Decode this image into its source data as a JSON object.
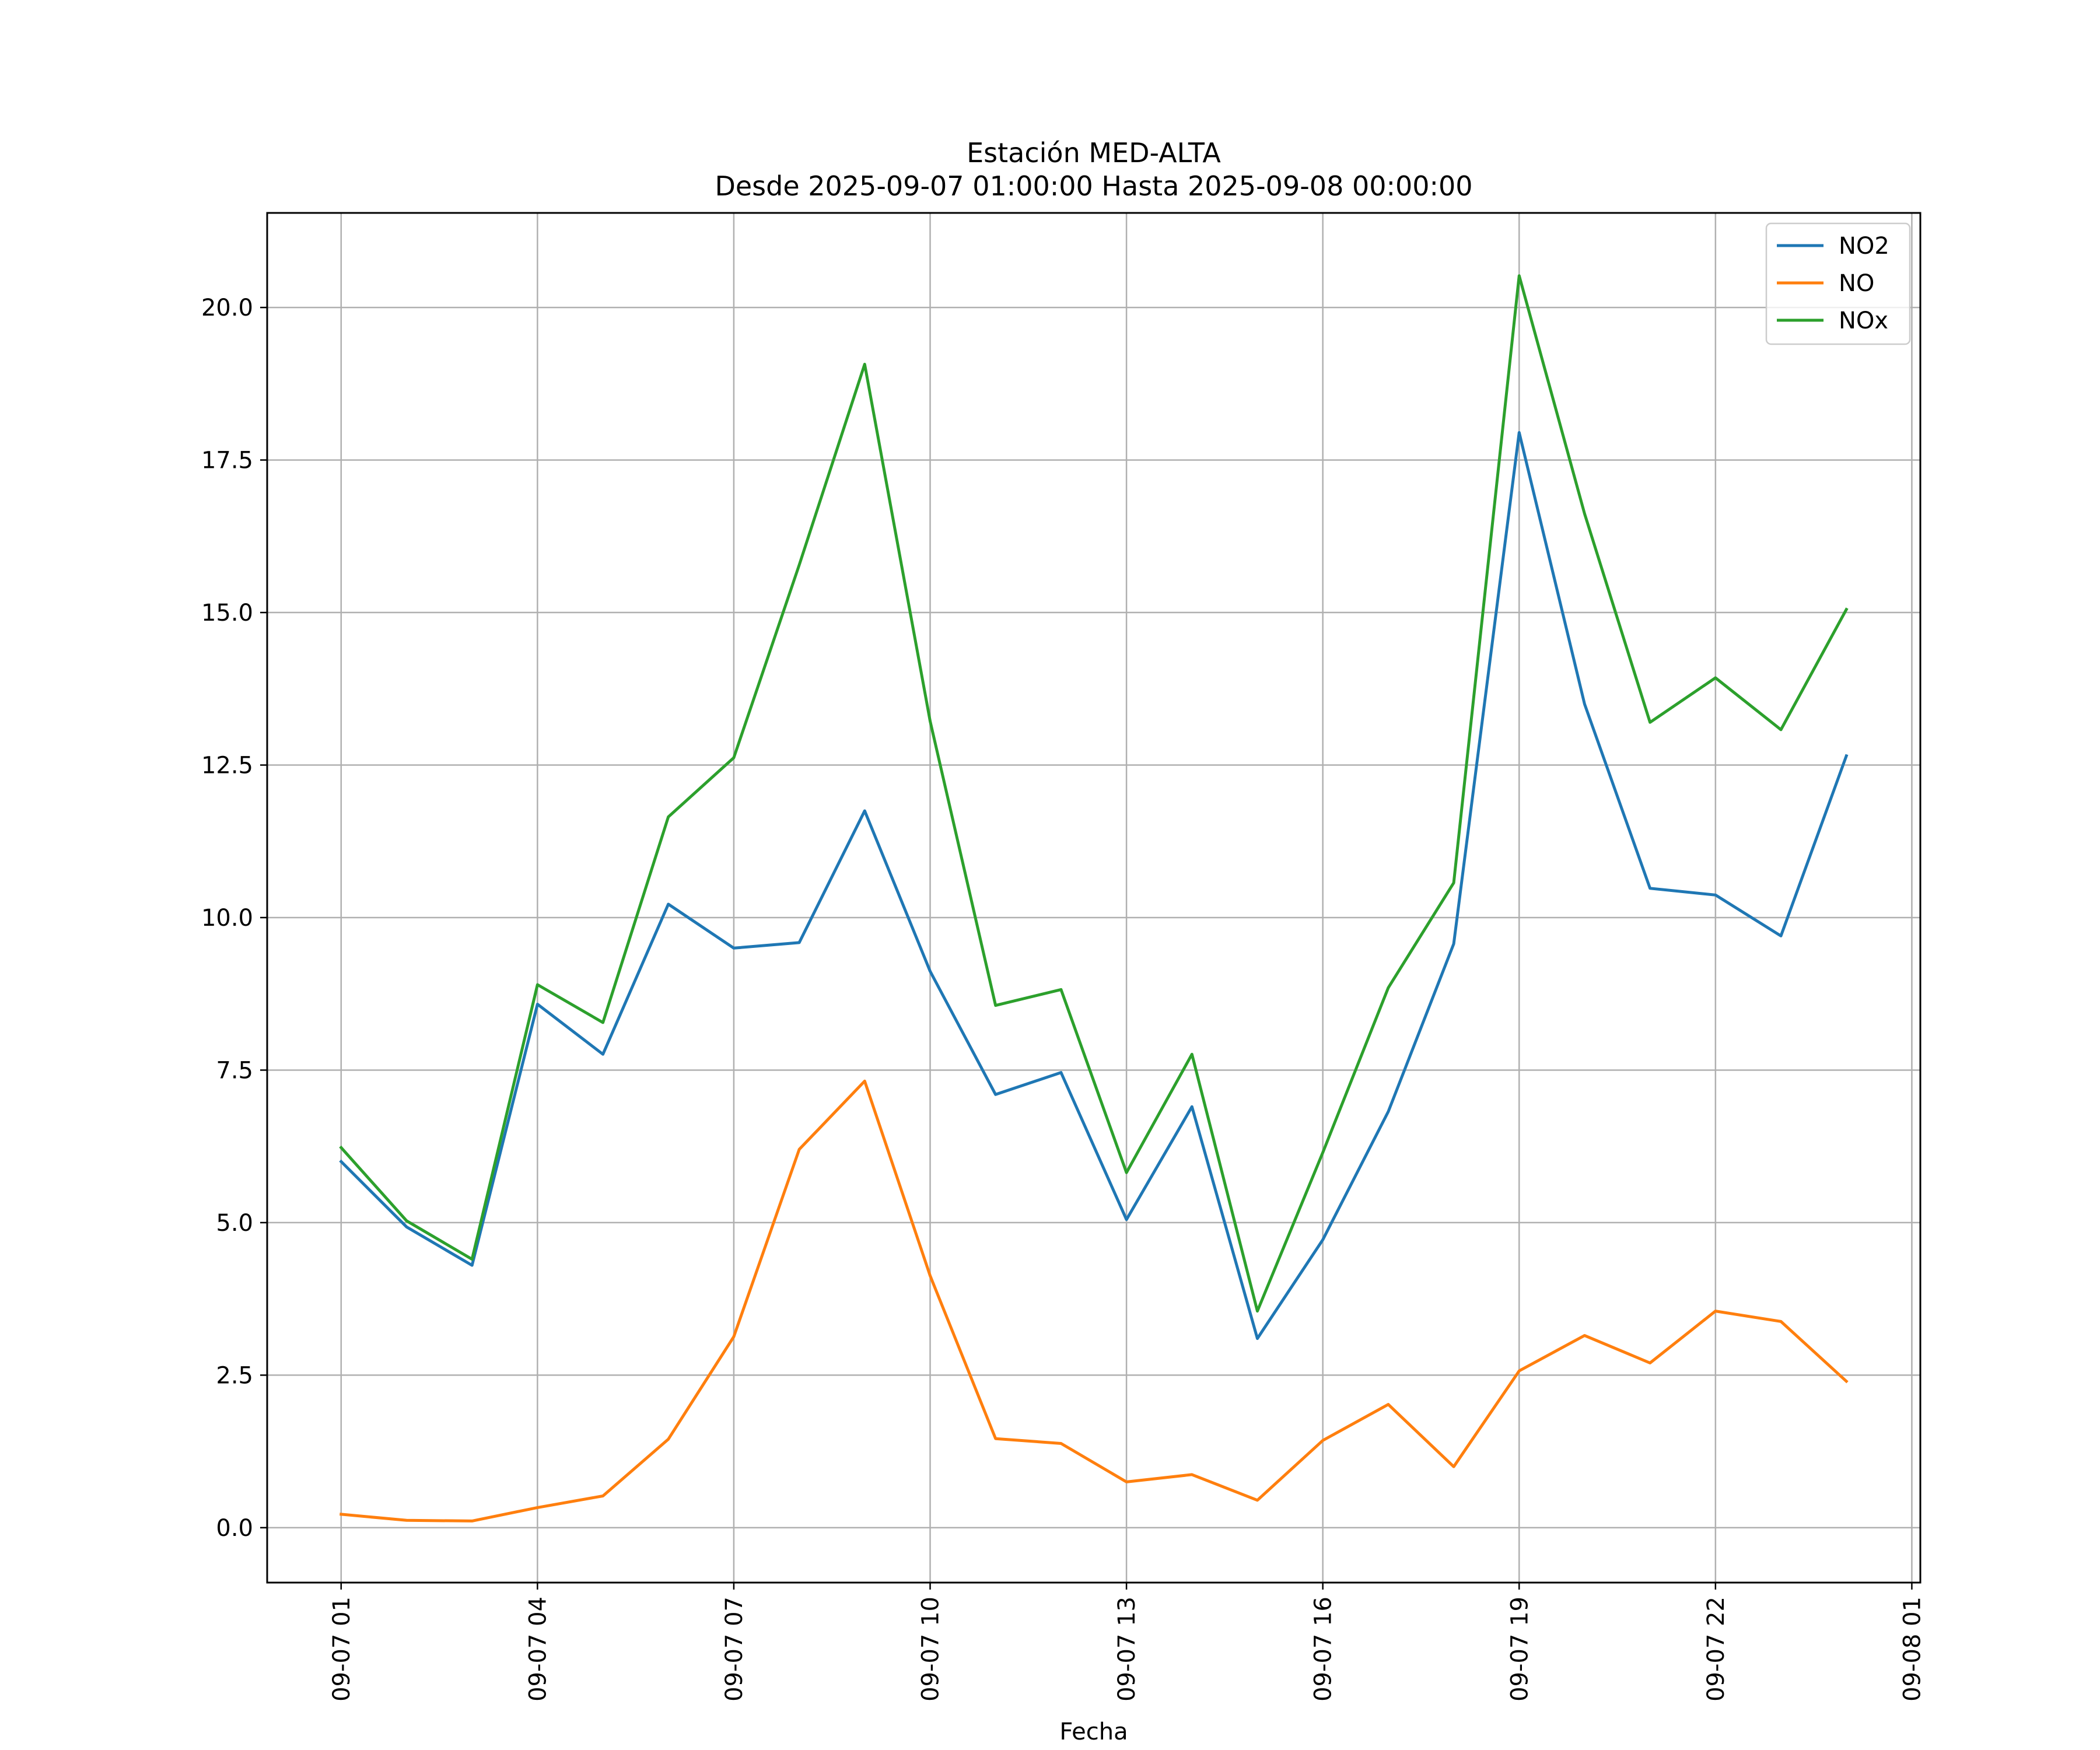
{
  "chart_data": {
    "type": "line",
    "title": "Estación MED-ALTA",
    "subtitle": "Desde 2025-09-07 01:00:00 Hasta 2025-09-08 00:00:00",
    "xlabel": "Fecha",
    "ylabel": "",
    "grid": true,
    "legend_position": "top-right",
    "x": [
      "09-07 01",
      "09-07 02",
      "09-07 03",
      "09-07 04",
      "09-07 05",
      "09-07 06",
      "09-07 07",
      "09-07 08",
      "09-07 09",
      "09-07 10",
      "09-07 11",
      "09-07 12",
      "09-07 13",
      "09-07 14",
      "09-07 15",
      "09-07 16",
      "09-07 17",
      "09-07 18",
      "09-07 19",
      "09-07 20",
      "09-07 21",
      "09-07 22",
      "09-07 23",
      "09-08 00"
    ],
    "x_hours": [
      1,
      2,
      3,
      4,
      5,
      6,
      7,
      8,
      9,
      10,
      11,
      12,
      13,
      14,
      15,
      16,
      17,
      18,
      19,
      20,
      21,
      22,
      23,
      24
    ],
    "xlim": [
      -0.13,
      25.13
    ],
    "xticks": [
      {
        "hour": 1,
        "label": "09-07 01"
      },
      {
        "hour": 4,
        "label": "09-07 04"
      },
      {
        "hour": 7,
        "label": "09-07 07"
      },
      {
        "hour": 10,
        "label": "09-07 10"
      },
      {
        "hour": 13,
        "label": "09-07 13"
      },
      {
        "hour": 16,
        "label": "09-07 16"
      },
      {
        "hour": 19,
        "label": "09-07 19"
      },
      {
        "hour": 22,
        "label": "09-07 22"
      },
      {
        "hour": 25,
        "label": "09-08 01"
      }
    ],
    "ylim": [
      -0.9,
      21.55
    ],
    "yticks": [
      {
        "value": 0,
        "label": "0.0"
      },
      {
        "value": 2.5,
        "label": "2.5"
      },
      {
        "value": 5,
        "label": "5.0"
      },
      {
        "value": 7.5,
        "label": "7.5"
      },
      {
        "value": 10,
        "label": "10.0"
      },
      {
        "value": 12.5,
        "label": "12.5"
      },
      {
        "value": 15,
        "label": "15.0"
      },
      {
        "value": 17.5,
        "label": "17.5"
      },
      {
        "value": 20,
        "label": "20.0"
      }
    ],
    "series": [
      {
        "name": "NO2",
        "color": "#1f77b4",
        "values": [
          6.0,
          4.93,
          4.3,
          8.58,
          7.76,
          10.22,
          9.5,
          9.59,
          11.75,
          9.12,
          7.1,
          7.46,
          5.05,
          6.9,
          3.1,
          4.72,
          6.82,
          9.57,
          17.95,
          13.5,
          10.48,
          10.37,
          9.7,
          12.65
        ]
      },
      {
        "name": "NO",
        "color": "#ff7f0e",
        "values": [
          0.22,
          0.12,
          0.11,
          0.33,
          0.52,
          1.45,
          3.13,
          6.2,
          7.32,
          4.13,
          1.46,
          1.38,
          0.75,
          0.87,
          0.45,
          1.43,
          2.02,
          1.0,
          2.57,
          3.15,
          2.7,
          3.55,
          3.38,
          2.4
        ]
      },
      {
        "name": "NOx",
        "color": "#2ca02c",
        "values": [
          6.23,
          5.03,
          4.4,
          8.9,
          8.28,
          11.65,
          12.62,
          15.78,
          19.07,
          13.22,
          8.56,
          8.82,
          5.82,
          7.76,
          3.55,
          6.15,
          8.85,
          10.57,
          20.52,
          16.62,
          13.2,
          13.93,
          13.08,
          15.05
        ]
      }
    ]
  }
}
